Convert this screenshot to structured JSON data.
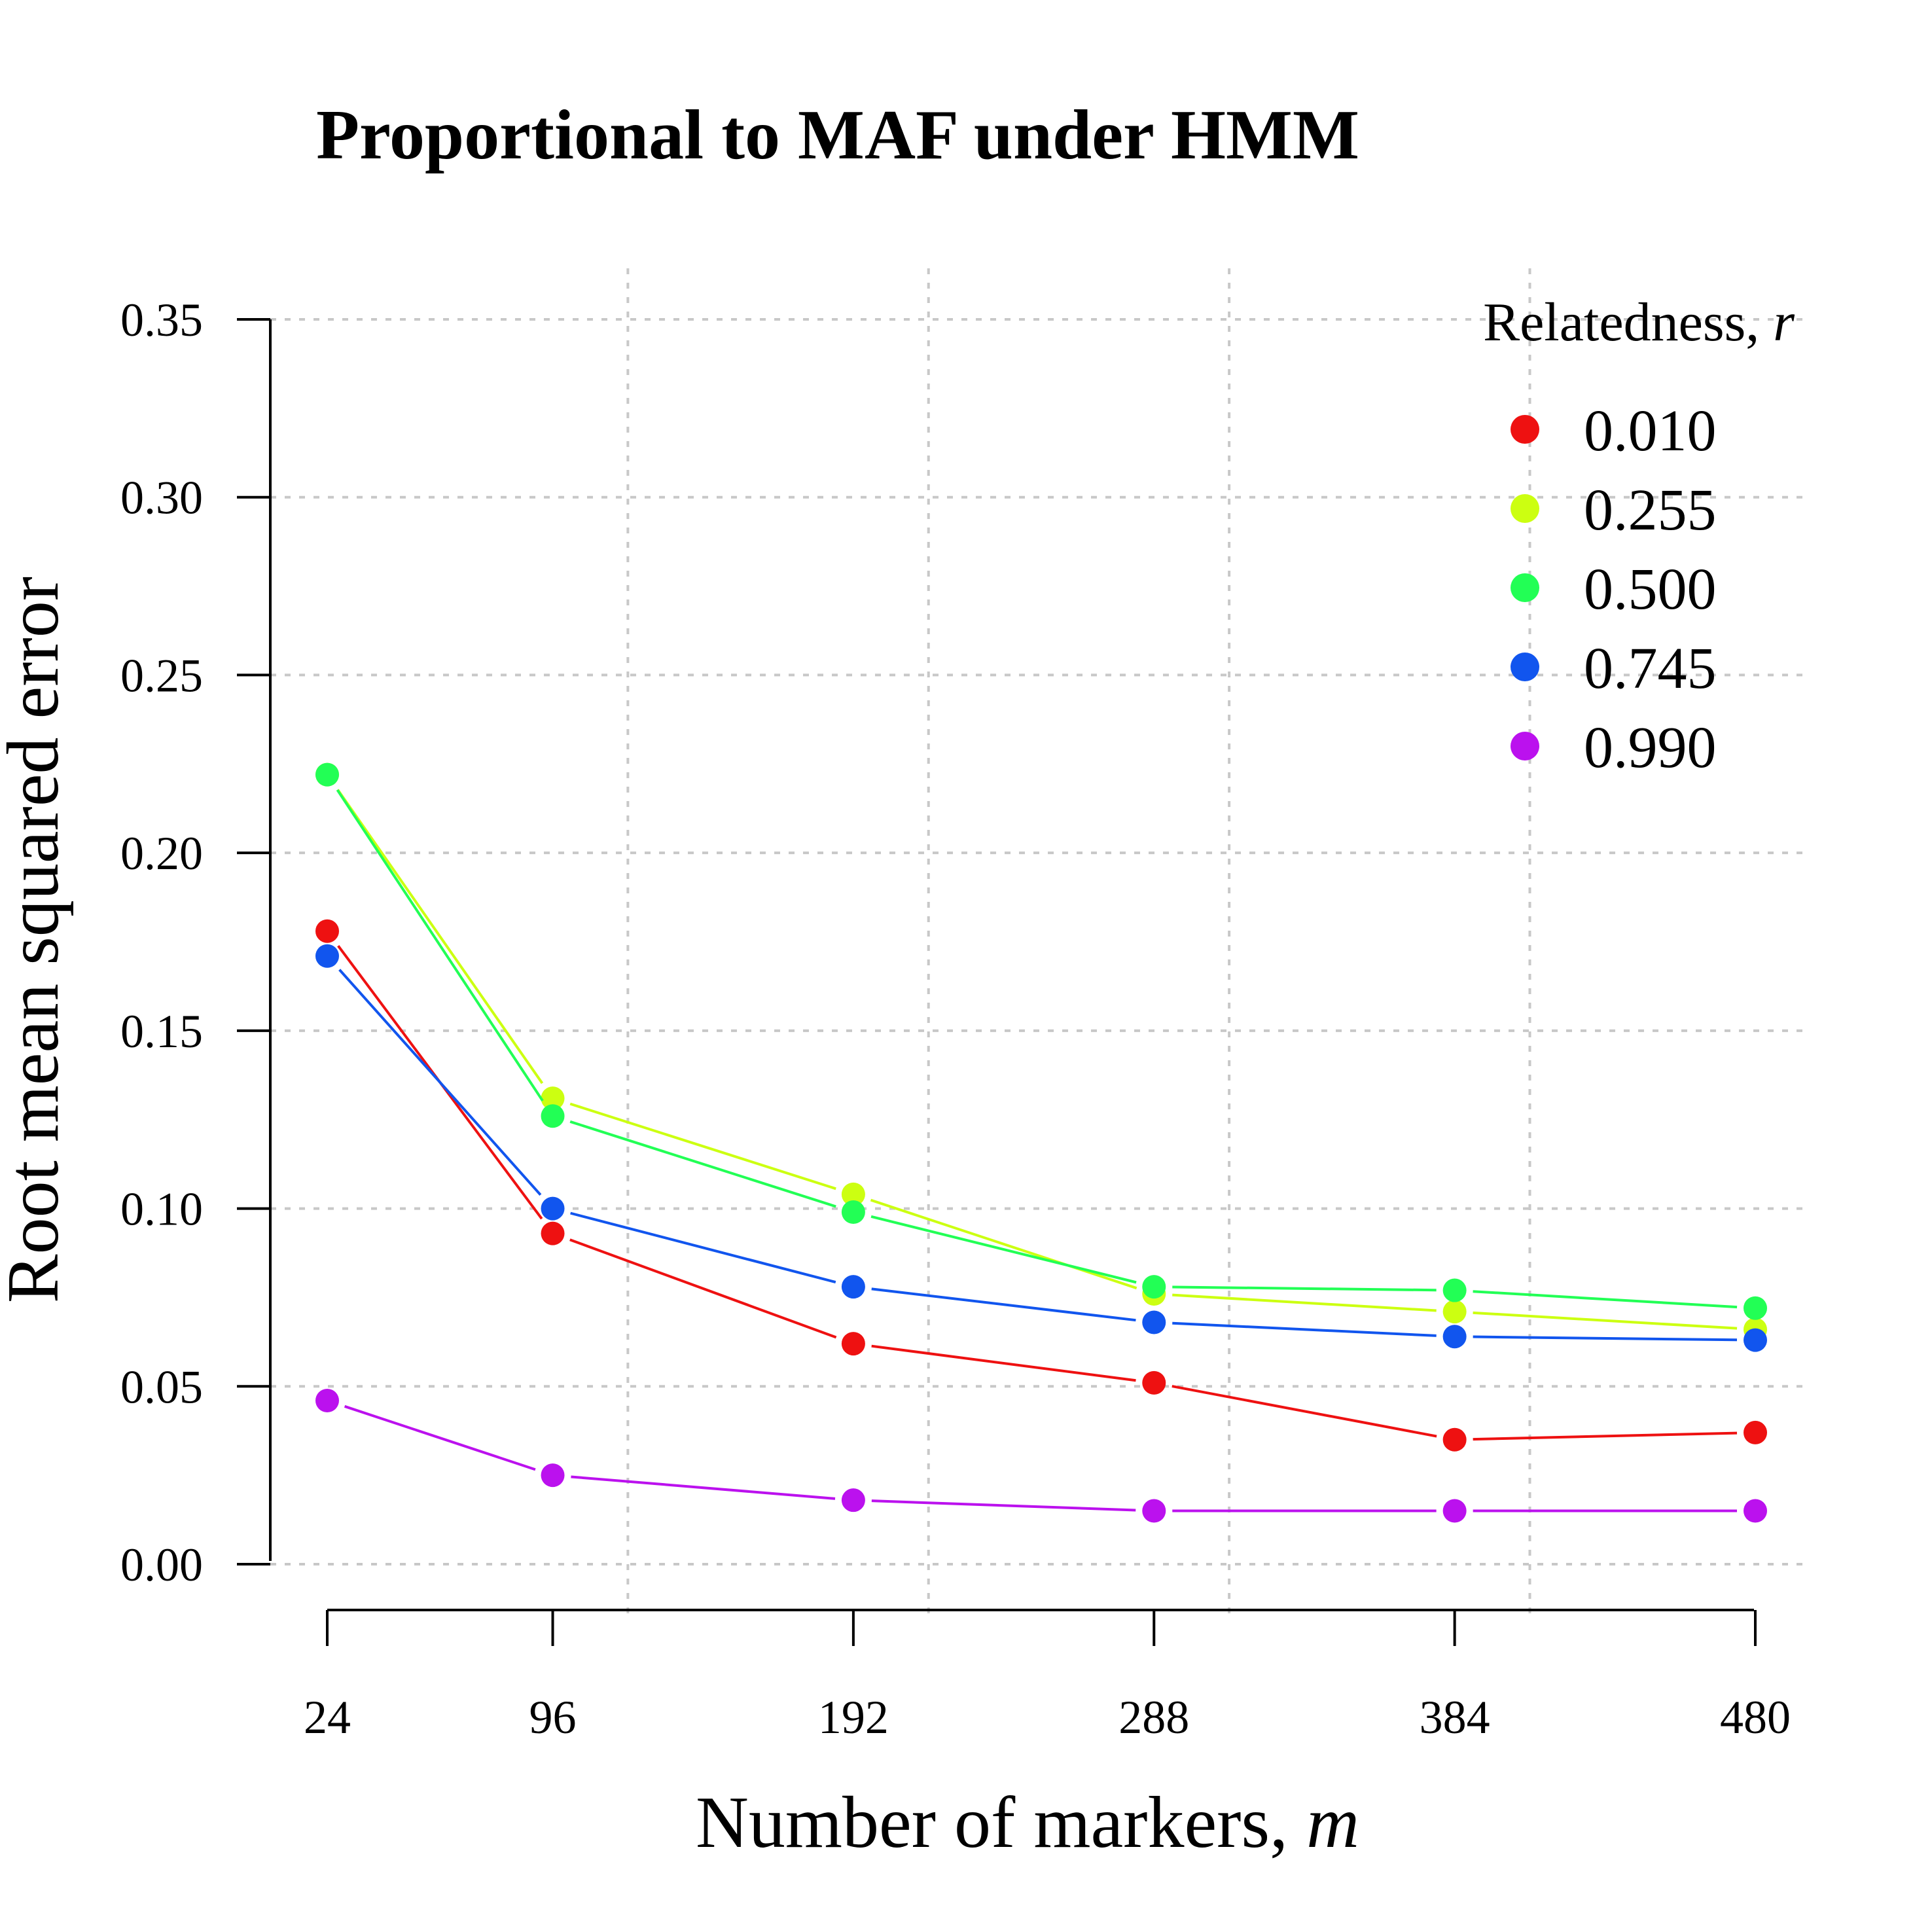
{
  "chart_data": {
    "type": "line",
    "title": "Proportional to MAF under HMM",
    "xlabel": "Number of markers, ",
    "xlabel_var": "m",
    "ylabel": "Root mean squared error",
    "x": [
      24,
      96,
      192,
      288,
      384,
      480
    ],
    "x_tick_labels": [
      "24",
      "96",
      "192",
      "288",
      "384",
      "480"
    ],
    "x_grid": [
      120,
      216,
      312,
      408
    ],
    "ylim": [
      0,
      0.35
    ],
    "y_ticks": [
      0,
      0.05,
      0.1,
      0.15,
      0.2,
      0.25,
      0.3,
      0.35
    ],
    "y_tick_labels": [
      "0.00",
      "0.05",
      "0.10",
      "0.15",
      "0.20",
      "0.25",
      "0.30",
      "0.35"
    ],
    "grid": true,
    "legend": {
      "title": "Relatedness, ",
      "title_var": "r",
      "position": "top-right"
    },
    "series": [
      {
        "name": "0.010",
        "color": "#ee1111",
        "values": [
          0.178,
          0.093,
          0.062,
          0.051,
          0.035,
          0.037
        ]
      },
      {
        "name": "0.255",
        "color": "#ccff11",
        "values": [
          0.222,
          0.131,
          0.104,
          0.076,
          0.071,
          0.066
        ]
      },
      {
        "name": "0.500",
        "color": "#22ff55",
        "values": [
          0.222,
          0.126,
          0.099,
          0.078,
          0.077,
          0.072
        ]
      },
      {
        "name": "0.745",
        "color": "#1155ee",
        "values": [
          0.171,
          0.1,
          0.078,
          0.068,
          0.064,
          0.063
        ]
      },
      {
        "name": "0.990",
        "color": "#bb11ee",
        "values": [
          0.046,
          0.025,
          0.018,
          0.015,
          0.015,
          0.015
        ]
      }
    ]
  }
}
